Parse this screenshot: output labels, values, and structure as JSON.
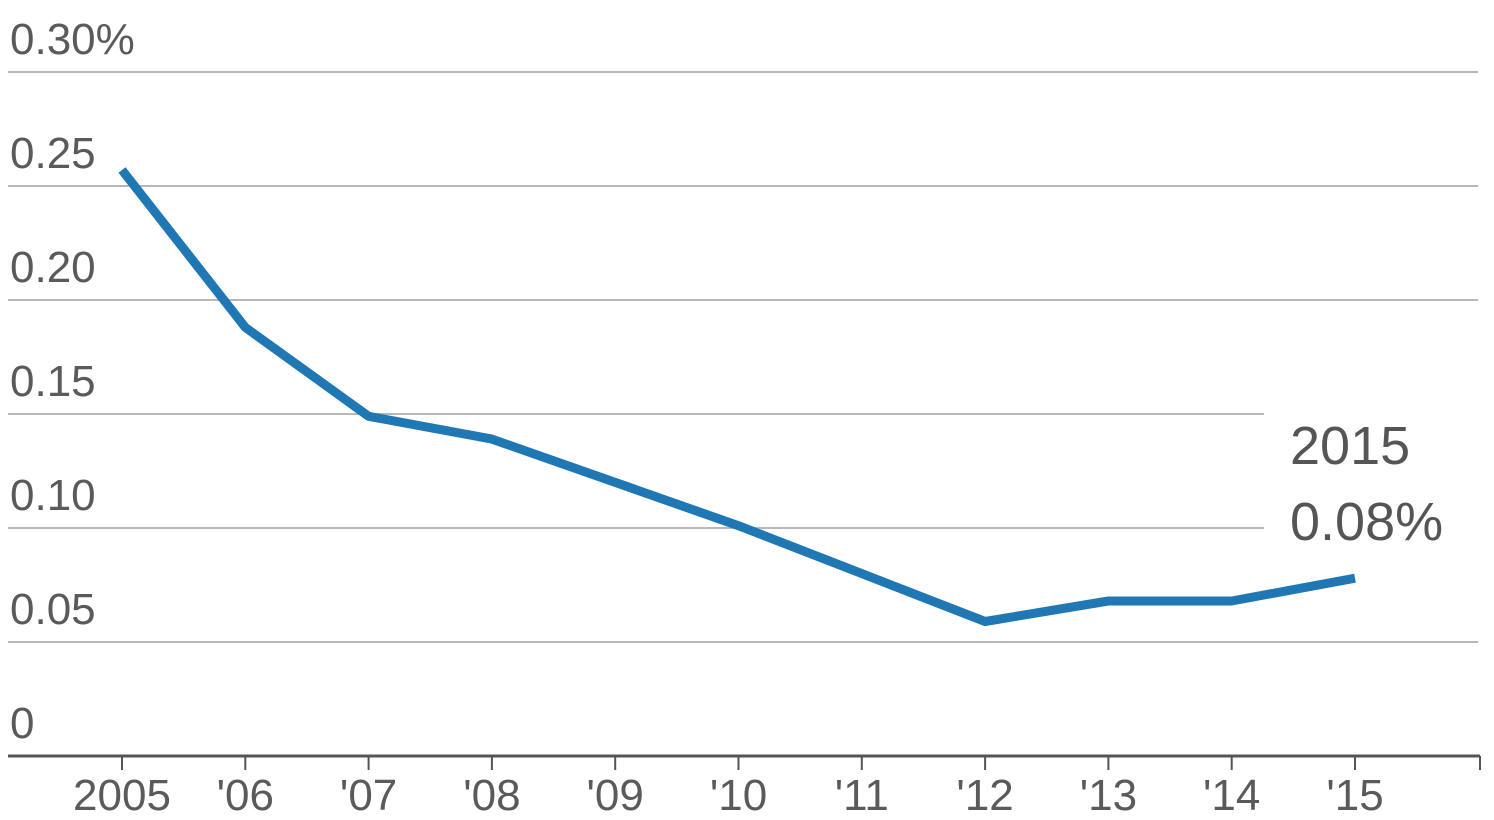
{
  "chart_data": {
    "type": "line",
    "x": [
      2005,
      2006,
      2007,
      2008,
      2009,
      2010,
      2011,
      2012,
      2013,
      2014,
      2015
    ],
    "x_tick_labels": [
      "2005",
      "'06",
      "'07",
      "'08",
      "'09",
      "'10",
      "'11",
      "'12",
      "'13",
      "'14",
      "'15"
    ],
    "series": [
      {
        "values": [
          0.257,
          0.188,
          0.149,
          0.139,
          0.12,
          0.101,
          0.08,
          0.059,
          0.068,
          0.068,
          0.078
        ]
      }
    ],
    "y_ticks": [
      0,
      0.05,
      0.1,
      0.15,
      0.2,
      0.25,
      0.3
    ],
    "y_tick_labels": [
      "0",
      "0.05",
      "0.10",
      "0.15",
      "0.20",
      "0.25",
      "0.30%"
    ],
    "ylim": [
      0,
      0.3
    ],
    "xlim": [
      2005,
      2016
    ],
    "grid": true,
    "annotation": {
      "year": "2015",
      "value": "0.08%"
    },
    "colors": {
      "line": "#1f77b4",
      "grid": "#b8b8b8",
      "axis": "#555555",
      "text": "#5a5a5a"
    }
  }
}
